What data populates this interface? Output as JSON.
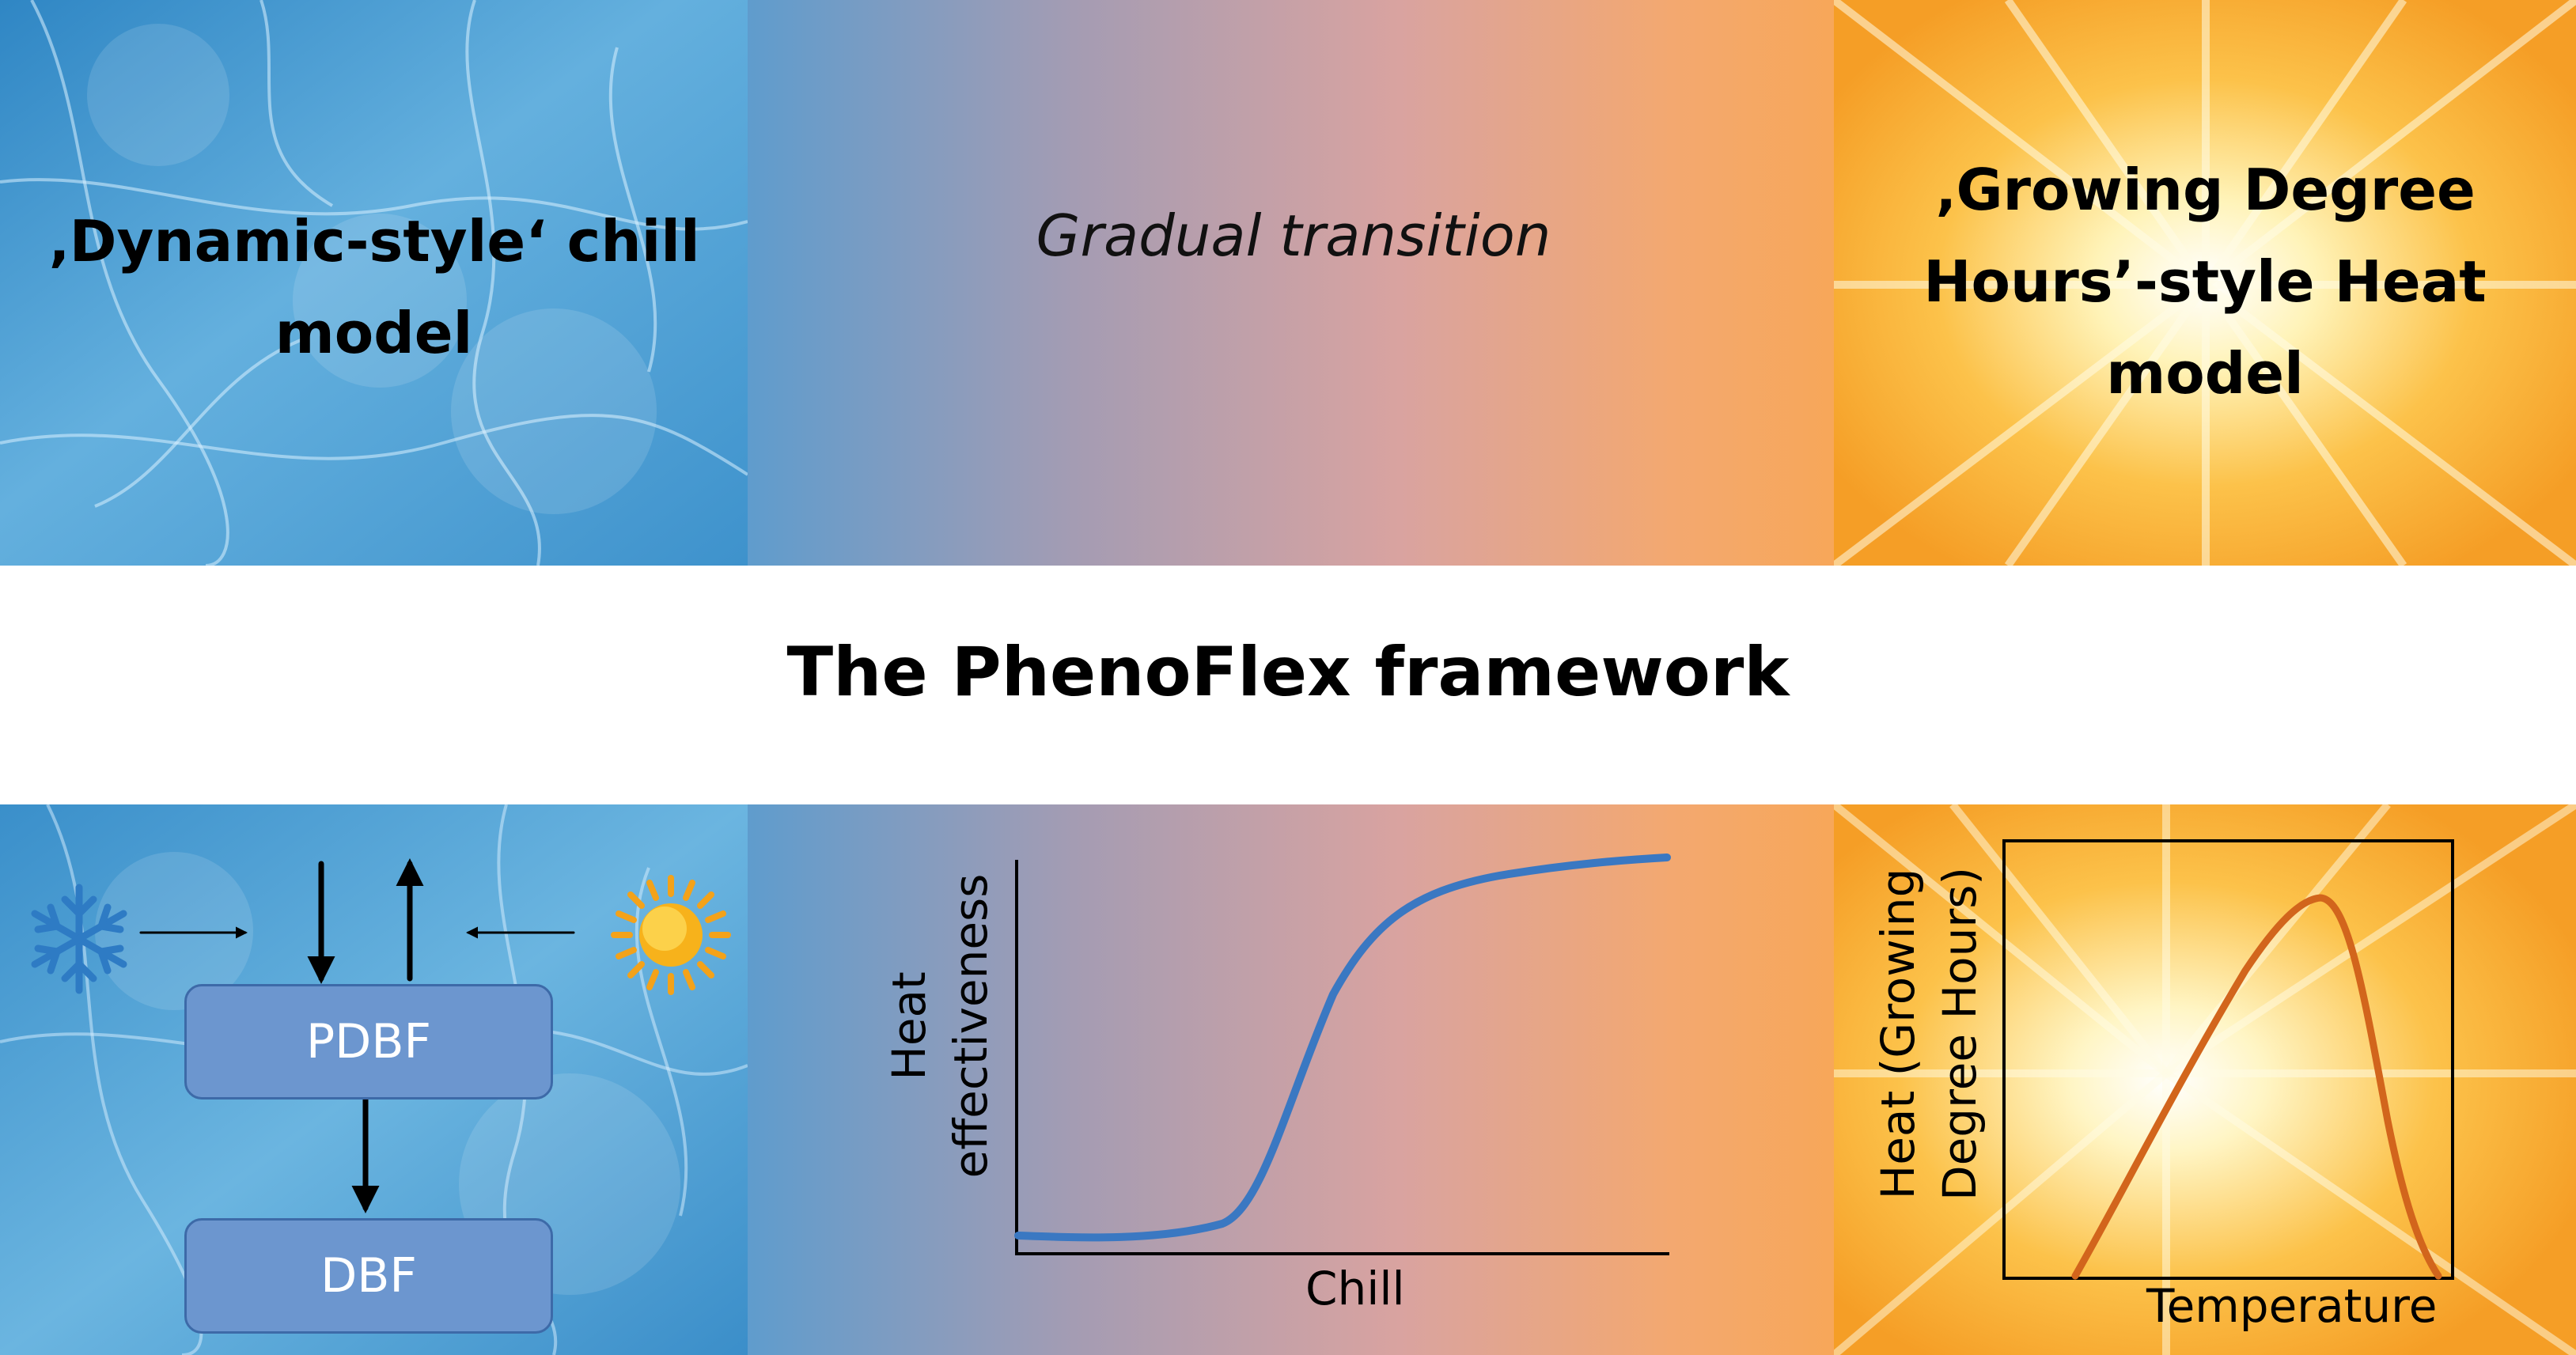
{
  "top": {
    "left_heading": "‚Dynamic-style‘ chill model",
    "middle_heading": "Gradual transition",
    "right_heading": "‚Growing Degree Hours’-style Heat model"
  },
  "framework_title": "The PhenoFlex framework",
  "left_diagram": {
    "snowflake_icon": "snowflake-icon",
    "sun_icon": "sun-icon",
    "box_top_label": "PDBF",
    "box_bottom_label": "DBF"
  },
  "middle_chart": {
    "xlabel": "Chill",
    "ylabel": "Heat effectiveness"
  },
  "right_chart": {
    "xlabel": "Temperature",
    "ylabel": "Heat (Growing Degree Hours)"
  },
  "colors": {
    "ice": "#5fa8d8",
    "sun": "#f7a630",
    "curve_blue": "#3a78c2",
    "curve_orange": "#d2651c",
    "box_fill": "#6c96cf"
  }
}
